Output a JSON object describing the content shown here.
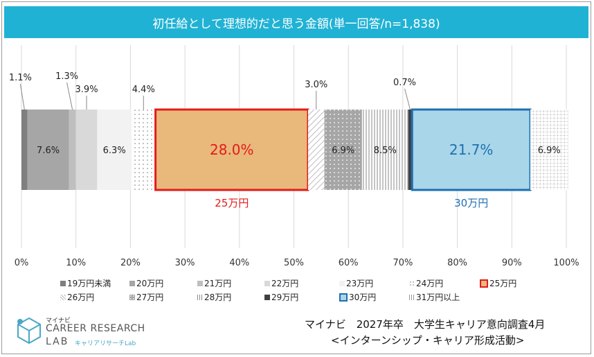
{
  "title": "初任給として理想的だと思う金額(単一回答/n=1,838)",
  "source": {
    "line1": "マイナビ　2027年卒　大学生キャリア意向調査4月",
    "line2": "<インターンシップ・キャリア形成活動>"
  },
  "logo": {
    "brand": "マイナビ",
    "name": "CAREER RESEARCH",
    "lab": "LAB",
    "sub": "キャリアリサーチLab"
  },
  "chart_data": {
    "type": "bar",
    "orientation": "horizontal-stacked-100",
    "title": "初任給として理想的だと思う金額(単一回答/n=1,838)",
    "xlim": [
      0,
      100
    ],
    "xticks": [
      "0%",
      "10%",
      "20%",
      "30%",
      "40%",
      "50%",
      "60%",
      "70%",
      "80%",
      "90%",
      "100%"
    ],
    "unit": "%",
    "series": [
      {
        "name": "19万円未満",
        "value": 1.1,
        "label": "1.1%",
        "color": "#7f7f7f",
        "pattern": "solid"
      },
      {
        "name": "20万円",
        "value": 7.6,
        "label": "7.6%",
        "color": "#a6a6a6",
        "pattern": "solid"
      },
      {
        "name": "21万円",
        "value": 1.3,
        "label": "1.3%",
        "color": "#bfbfbf",
        "pattern": "solid"
      },
      {
        "name": "22万円",
        "value": 3.9,
        "label": "3.9%",
        "color": "#d9d9d9",
        "pattern": "solid"
      },
      {
        "name": "23万円",
        "value": 6.3,
        "label": "6.3%",
        "color": "#f2f2f2",
        "pattern": "solid"
      },
      {
        "name": "24万円",
        "value": 4.4,
        "label": "4.4%",
        "color": "#ffffff",
        "pattern": "dots"
      },
      {
        "name": "25万円",
        "value": 28.0,
        "label": "28.0%",
        "color": "#e9b87b",
        "pattern": "solid",
        "highlight": "#e31b1b",
        "callout": "25万円"
      },
      {
        "name": "26万円",
        "value": 3.0,
        "label": "3.0%",
        "color": "#ffffff",
        "pattern": "diagonal"
      },
      {
        "name": "27万円",
        "value": 6.9,
        "label": "6.9%",
        "color": "#a6a6a6",
        "pattern": "dots-white"
      },
      {
        "name": "28万円",
        "value": 8.5,
        "label": "8.5%",
        "color": "#ffffff",
        "pattern": "vertical"
      },
      {
        "name": "29万円",
        "value": 0.7,
        "label": "0.7%",
        "color": "#404040",
        "pattern": "solid"
      },
      {
        "name": "30万円",
        "value": 21.7,
        "label": "21.7%",
        "color": "#a9d6e9",
        "pattern": "solid",
        "highlight": "#1f6fb2",
        "callout": "30万円"
      },
      {
        "name": "31万円以上",
        "value": 6.9,
        "label": "6.9%",
        "color": "#ffffff",
        "pattern": "grid"
      }
    ],
    "legend_position": "bottom"
  }
}
